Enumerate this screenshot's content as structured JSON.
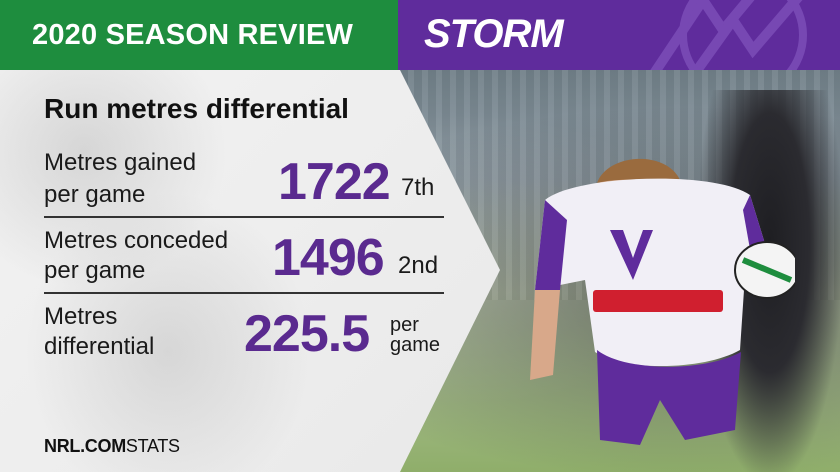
{
  "header": {
    "left_title": "2020 SEASON REVIEW",
    "team_name": "STORM"
  },
  "stats": {
    "title": "Run metres differential",
    "rows": [
      {
        "label_line1": "Metres gained",
        "label_line2": "per game",
        "value": "1722",
        "rank": "7th"
      },
      {
        "label_line1": "Metres conceded",
        "label_line2": "per game",
        "value": "1496",
        "rank": "2nd"
      },
      {
        "label_line1": "Metres",
        "label_line2": "differential",
        "value": "225.5",
        "unit_line1": "per",
        "unit_line2": "game"
      }
    ]
  },
  "footer": {
    "brand": "NRL.COM",
    "suffix": "STATS"
  },
  "colors": {
    "green": "#1e8d3e",
    "purple": "#5f2c9c",
    "value_purple": "#5a2a8f"
  },
  "icons": [
    "storm-lightning-logo",
    "player-photo"
  ]
}
